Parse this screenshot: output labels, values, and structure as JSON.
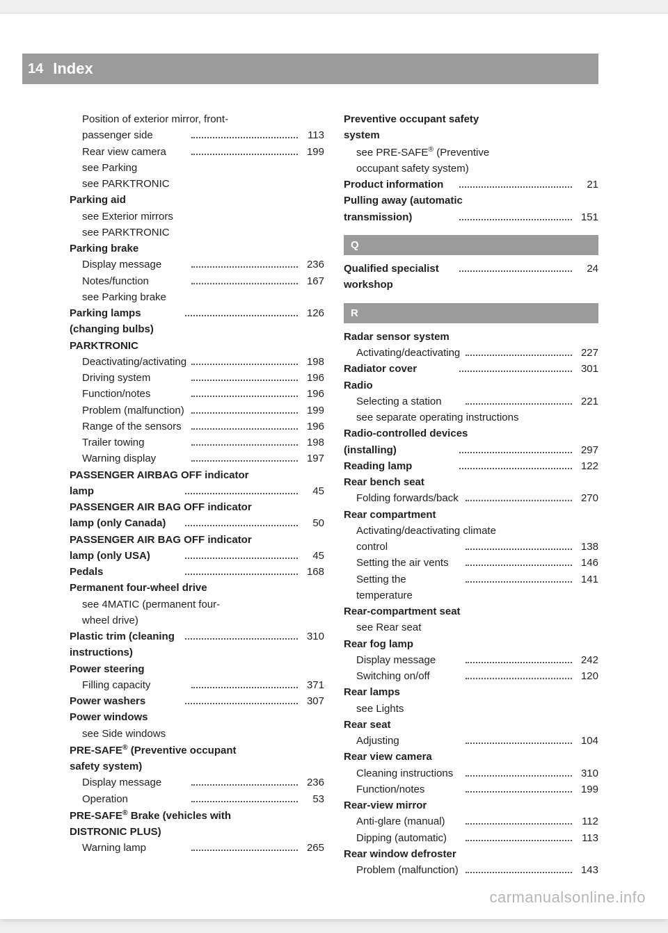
{
  "header": {
    "pageNumber": "14",
    "title": "Index"
  },
  "watermark": "carmanualsonline.info",
  "columns": {
    "left": [
      {
        "type": "entry",
        "sub": true,
        "bold": false,
        "lines": [
          "Position of exterior mirror, front-",
          "passenger side"
        ],
        "page": "113"
      },
      {
        "type": "entry",
        "sub": true,
        "bold": false,
        "lines": [
          "Rear view camera"
        ],
        "page": "199"
      },
      {
        "type": "entry",
        "sub": true,
        "bold": false,
        "lines": [
          "see Parking"
        ],
        "page": null
      },
      {
        "type": "entry",
        "sub": true,
        "bold": false,
        "lines": [
          "see PARKTRONIC"
        ],
        "page": null
      },
      {
        "type": "entry",
        "sub": false,
        "bold": true,
        "lines": [
          "Parking aid"
        ],
        "page": null
      },
      {
        "type": "entry",
        "sub": true,
        "bold": false,
        "lines": [
          "see Exterior mirrors"
        ],
        "page": null
      },
      {
        "type": "entry",
        "sub": true,
        "bold": false,
        "lines": [
          "see PARKTRONIC"
        ],
        "page": null
      },
      {
        "type": "entry",
        "sub": false,
        "bold": true,
        "lines": [
          "Parking brake"
        ],
        "page": null
      },
      {
        "type": "entry",
        "sub": true,
        "bold": false,
        "lines": [
          "Display message"
        ],
        "page": "236"
      },
      {
        "type": "entry",
        "sub": true,
        "bold": false,
        "lines": [
          "Notes/function"
        ],
        "page": "167"
      },
      {
        "type": "entry",
        "sub": true,
        "bold": false,
        "lines": [
          "see Parking brake"
        ],
        "page": null
      },
      {
        "type": "entry",
        "sub": false,
        "bold": true,
        "lines": [
          "Parking lamps (changing bulbs)"
        ],
        "page": "126"
      },
      {
        "type": "entry",
        "sub": false,
        "bold": true,
        "lines": [
          "PARKTRONIC"
        ],
        "page": null
      },
      {
        "type": "entry",
        "sub": true,
        "bold": false,
        "lines": [
          "Deactivating/activating"
        ],
        "page": "198"
      },
      {
        "type": "entry",
        "sub": true,
        "bold": false,
        "lines": [
          "Driving system"
        ],
        "page": "196"
      },
      {
        "type": "entry",
        "sub": true,
        "bold": false,
        "lines": [
          "Function/notes"
        ],
        "page": "196"
      },
      {
        "type": "entry",
        "sub": true,
        "bold": false,
        "lines": [
          "Problem (malfunction)"
        ],
        "page": "199"
      },
      {
        "type": "entry",
        "sub": true,
        "bold": false,
        "lines": [
          "Range of the sensors"
        ],
        "page": "196"
      },
      {
        "type": "entry",
        "sub": true,
        "bold": false,
        "lines": [
          "Trailer towing"
        ],
        "page": "198"
      },
      {
        "type": "entry",
        "sub": true,
        "bold": false,
        "lines": [
          "Warning display"
        ],
        "page": "197"
      },
      {
        "type": "entry",
        "sub": false,
        "bold": true,
        "lines": [
          "PASSENGER AIRBAG OFF indicator",
          "lamp"
        ],
        "page": "45"
      },
      {
        "type": "entry",
        "sub": false,
        "bold": true,
        "lines": [
          "PASSENGER AIR BAG OFF indicator",
          "lamp (only Canada)"
        ],
        "page": "50"
      },
      {
        "type": "entry",
        "sub": false,
        "bold": true,
        "lines": [
          "PASSENGER AIR BAG OFF indicator",
          "lamp (only USA)"
        ],
        "page": "45"
      },
      {
        "type": "entry",
        "sub": false,
        "bold": true,
        "lines": [
          "Pedals"
        ],
        "page": "168"
      },
      {
        "type": "entry",
        "sub": false,
        "bold": true,
        "lines": [
          "Permanent four-wheel drive"
        ],
        "page": null
      },
      {
        "type": "entry",
        "sub": true,
        "bold": false,
        "lines": [
          "see 4MATIC (permanent four-",
          "wheel drive)"
        ],
        "page": null
      },
      {
        "type": "entry",
        "sub": false,
        "bold": true,
        "lines": [
          "Plastic trim (cleaning instructions)"
        ],
        "page": "310",
        "tightDots": true
      },
      {
        "type": "entry",
        "sub": false,
        "bold": true,
        "lines": [
          "Power steering"
        ],
        "page": null
      },
      {
        "type": "entry",
        "sub": true,
        "bold": false,
        "lines": [
          "Filling capacity"
        ],
        "page": "371"
      },
      {
        "type": "entry",
        "sub": false,
        "bold": true,
        "lines": [
          "Power washers"
        ],
        "page": "307"
      },
      {
        "type": "entry",
        "sub": false,
        "bold": true,
        "lines": [
          "Power windows"
        ],
        "page": null
      },
      {
        "type": "entry",
        "sub": true,
        "bold": false,
        "lines": [
          "see Side windows"
        ],
        "page": null
      },
      {
        "type": "entry",
        "sub": false,
        "bold": true,
        "html": true,
        "lines": [
          "PRE-SAFE<sup>®</sup> (Preventive occupant",
          "safety system)"
        ],
        "page": null
      },
      {
        "type": "entry",
        "sub": true,
        "bold": false,
        "lines": [
          "Display message"
        ],
        "page": "236"
      },
      {
        "type": "entry",
        "sub": true,
        "bold": false,
        "lines": [
          "Operation"
        ],
        "page": "53"
      },
      {
        "type": "entry",
        "sub": false,
        "bold": true,
        "html": true,
        "lines": [
          "PRE-SAFE<sup>®</sup> Brake (vehicles with",
          "DISTRONIC PLUS)"
        ],
        "page": null
      },
      {
        "type": "entry",
        "sub": true,
        "bold": false,
        "lines": [
          "Warning lamp"
        ],
        "page": "265"
      }
    ],
    "right": [
      {
        "type": "entry",
        "sub": false,
        "bold": true,
        "lines": [
          "Preventive occupant safety",
          "system"
        ],
        "page": null
      },
      {
        "type": "entry",
        "sub": true,
        "bold": false,
        "html": true,
        "lines": [
          "see PRE-SAFE<sup>®</sup> (Preventive",
          "occupant safety system)"
        ],
        "page": null
      },
      {
        "type": "entry",
        "sub": false,
        "bold": true,
        "lines": [
          "Product information"
        ],
        "page": "21"
      },
      {
        "type": "entry",
        "sub": false,
        "bold": true,
        "lines": [
          "Pulling away (automatic",
          "transmission)"
        ],
        "page": "151"
      },
      {
        "type": "section",
        "letter": "Q"
      },
      {
        "type": "entry",
        "sub": false,
        "bold": true,
        "lines": [
          "Qualified specialist workshop"
        ],
        "page": "24"
      },
      {
        "type": "section",
        "letter": "R"
      },
      {
        "type": "entry",
        "sub": false,
        "bold": true,
        "lines": [
          "Radar sensor system"
        ],
        "page": null
      },
      {
        "type": "entry",
        "sub": true,
        "bold": false,
        "lines": [
          "Activating/deactivating"
        ],
        "page": "227"
      },
      {
        "type": "entry",
        "sub": false,
        "bold": true,
        "lines": [
          "Radiator cover"
        ],
        "page": "301"
      },
      {
        "type": "entry",
        "sub": false,
        "bold": true,
        "lines": [
          "Radio"
        ],
        "page": null
      },
      {
        "type": "entry",
        "sub": true,
        "bold": false,
        "lines": [
          "Selecting a station"
        ],
        "page": "221"
      },
      {
        "type": "entry",
        "sub": true,
        "bold": false,
        "lines": [
          "see separate operating instructions"
        ],
        "page": null
      },
      {
        "type": "entry",
        "sub": false,
        "bold": true,
        "lines": [
          "Radio-controlled devices",
          "(installing)"
        ],
        "page": "297"
      },
      {
        "type": "entry",
        "sub": false,
        "bold": true,
        "lines": [
          "Reading lamp"
        ],
        "page": "122"
      },
      {
        "type": "entry",
        "sub": false,
        "bold": true,
        "lines": [
          "Rear bench seat"
        ],
        "page": null
      },
      {
        "type": "entry",
        "sub": true,
        "bold": false,
        "lines": [
          "Folding forwards/back"
        ],
        "page": "270"
      },
      {
        "type": "entry",
        "sub": false,
        "bold": true,
        "lines": [
          "Rear compartment"
        ],
        "page": null
      },
      {
        "type": "entry",
        "sub": true,
        "bold": false,
        "lines": [
          "Activating/deactivating climate",
          "control"
        ],
        "page": "138"
      },
      {
        "type": "entry",
        "sub": true,
        "bold": false,
        "lines": [
          "Setting the air vents"
        ],
        "page": "146"
      },
      {
        "type": "entry",
        "sub": true,
        "bold": false,
        "lines": [
          "Setting the temperature"
        ],
        "page": "141"
      },
      {
        "type": "entry",
        "sub": false,
        "bold": true,
        "lines": [
          "Rear-compartment seat"
        ],
        "page": null
      },
      {
        "type": "entry",
        "sub": true,
        "bold": false,
        "lines": [
          "see Rear seat"
        ],
        "page": null
      },
      {
        "type": "entry",
        "sub": false,
        "bold": true,
        "lines": [
          "Rear fog lamp"
        ],
        "page": null
      },
      {
        "type": "entry",
        "sub": true,
        "bold": false,
        "lines": [
          "Display message"
        ],
        "page": "242"
      },
      {
        "type": "entry",
        "sub": true,
        "bold": false,
        "lines": [
          "Switching on/off"
        ],
        "page": "120"
      },
      {
        "type": "entry",
        "sub": false,
        "bold": true,
        "lines": [
          "Rear lamps"
        ],
        "page": null
      },
      {
        "type": "entry",
        "sub": true,
        "bold": false,
        "lines": [
          "see Lights"
        ],
        "page": null
      },
      {
        "type": "entry",
        "sub": false,
        "bold": true,
        "lines": [
          "Rear seat"
        ],
        "page": null
      },
      {
        "type": "entry",
        "sub": true,
        "bold": false,
        "lines": [
          "Adjusting"
        ],
        "page": "104"
      },
      {
        "type": "entry",
        "sub": false,
        "bold": true,
        "lines": [
          "Rear view camera"
        ],
        "page": null
      },
      {
        "type": "entry",
        "sub": true,
        "bold": false,
        "lines": [
          "Cleaning instructions"
        ],
        "page": "310"
      },
      {
        "type": "entry",
        "sub": true,
        "bold": false,
        "lines": [
          "Function/notes"
        ],
        "page": "199"
      },
      {
        "type": "entry",
        "sub": false,
        "bold": true,
        "lines": [
          "Rear-view mirror"
        ],
        "page": null
      },
      {
        "type": "entry",
        "sub": true,
        "bold": false,
        "lines": [
          "Anti-glare (manual)"
        ],
        "page": "112"
      },
      {
        "type": "entry",
        "sub": true,
        "bold": false,
        "lines": [
          "Dipping (automatic)"
        ],
        "page": "113"
      },
      {
        "type": "entry",
        "sub": false,
        "bold": true,
        "lines": [
          "Rear window defroster"
        ],
        "page": null
      },
      {
        "type": "entry",
        "sub": true,
        "bold": false,
        "lines": [
          "Problem (malfunction)"
        ],
        "page": "143"
      }
    ]
  }
}
